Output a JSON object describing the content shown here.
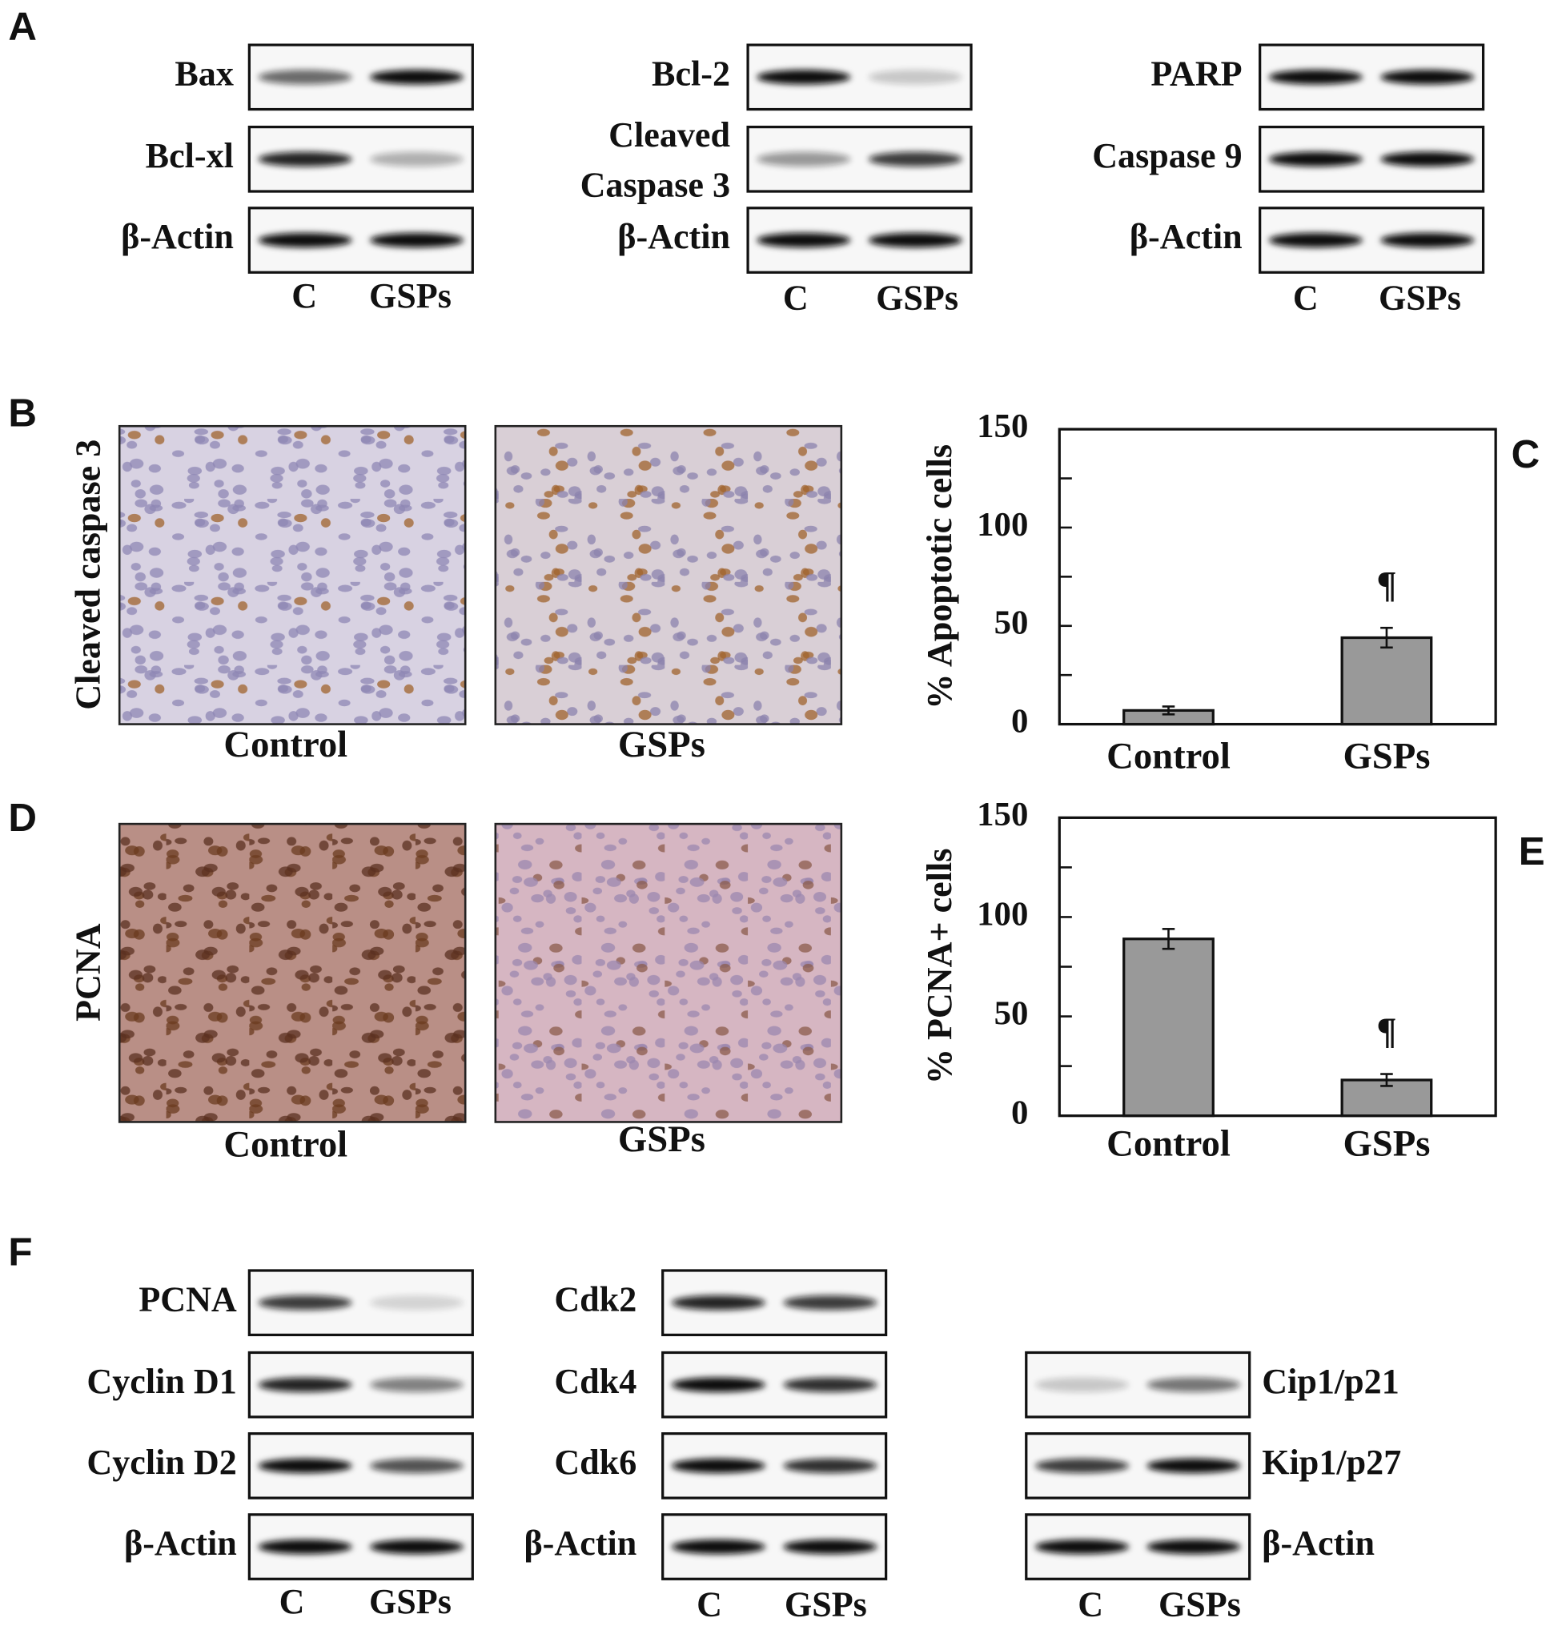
{
  "panel_labels": [
    "A",
    "B",
    "C",
    "D",
    "E",
    "F"
  ],
  "panel_a": {
    "blots": [
      {
        "rows": [
          "Bax",
          "Bcl-xl",
          "β-Actin"
        ],
        "lanes": [
          "C",
          "GSPs"
        ]
      },
      {
        "rows": [
          "Bcl-2",
          [
            "Cleaved",
            "Caspase 3"
          ],
          "β-Actin"
        ],
        "lanes": [
          "C",
          "GSPs"
        ]
      },
      {
        "rows": [
          "PARP",
          "Caspase 9",
          "β-Actin"
        ],
        "lanes": [
          "C",
          "GSPs"
        ]
      }
    ]
  },
  "panel_b": {
    "ylabel": "Cleaved caspase 3",
    "captions": [
      "Control",
      "GSPs"
    ]
  },
  "panel_d": {
    "ylabel": "PCNA",
    "captions": [
      "Control",
      "GSPs"
    ]
  },
  "panel_f": {
    "blots": [
      {
        "rows": [
          "PCNA",
          "Cyclin D1",
          "Cyclin D2",
          "β-Actin"
        ],
        "lanes": [
          "C",
          "GSPs"
        ]
      },
      {
        "rows": [
          "Cdk2",
          "Cdk4",
          "Cdk6",
          "β-Actin"
        ],
        "lanes": [
          "C",
          "GSPs"
        ]
      },
      {
        "rows": [
          "Cip1/p21",
          "Kip1/p27",
          "β-Actin"
        ],
        "lanes": [
          "C",
          "GSPs"
        ]
      }
    ]
  },
  "chart_data": [
    {
      "type": "bar",
      "ylabel": "% Apoptotic cells",
      "categories": [
        "Control",
        "GSPs"
      ],
      "values": [
        7,
        44
      ],
      "errors": [
        2,
        5
      ],
      "bar_annotations": [
        null,
        "¶"
      ],
      "color": "#999999",
      "ylim": [
        0,
        150
      ],
      "yticks": [
        0,
        50,
        100,
        150
      ],
      "yminorticks": [
        25,
        75,
        125
      ]
    },
    {
      "type": "bar",
      "ylabel": "% PCNA+ cells",
      "categories": [
        "Control",
        "GSPs"
      ],
      "values": [
        89,
        18
      ],
      "errors": [
        5,
        3
      ],
      "bar_annotations": [
        null,
        "¶"
      ],
      "color": "#999999",
      "ylim": [
        0,
        150
      ],
      "yticks": [
        0,
        50,
        100,
        150
      ],
      "yminorticks": [
        25,
        75,
        125
      ]
    }
  ]
}
